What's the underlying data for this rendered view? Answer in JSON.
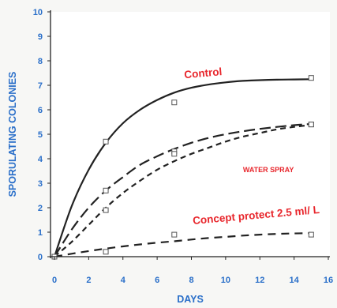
{
  "chart_data": {
    "type": "line",
    "xlabel": "DAYS",
    "ylabel": "SPORULATING COLONIES",
    "xlim": [
      0,
      16
    ],
    "ylim": [
      0,
      10
    ],
    "xticks": [
      0,
      2,
      4,
      6,
      8,
      10,
      12,
      14,
      16
    ],
    "yticks": [
      0,
      1,
      2,
      3,
      4,
      5,
      6,
      7,
      8,
      9,
      10
    ],
    "grid": false,
    "legend": "none",
    "colors": {
      "axis": "#2a6fc9",
      "annotation": "#e8262c",
      "lines": "#222222"
    },
    "series": [
      {
        "name": "Control",
        "style": "solid",
        "points": [
          [
            0,
            0
          ],
          [
            3,
            4.7
          ],
          [
            7,
            6.3
          ],
          [
            15,
            7.3
          ]
        ],
        "curve": [
          [
            0,
            0
          ],
          [
            1,
            2.05
          ],
          [
            2,
            3.55
          ],
          [
            3,
            4.65
          ],
          [
            4,
            5.45
          ],
          [
            5,
            6.0
          ],
          [
            6,
            6.4
          ],
          [
            7,
            6.7
          ],
          [
            8,
            6.9
          ],
          [
            9,
            7.03
          ],
          [
            10,
            7.12
          ],
          [
            11,
            7.18
          ],
          [
            12,
            7.21
          ],
          [
            13,
            7.23
          ],
          [
            14,
            7.24
          ],
          [
            15,
            7.25
          ]
        ]
      },
      {
        "name": "",
        "style": "long-dash",
        "points": [
          [
            0,
            0
          ],
          [
            3,
            2.7
          ],
          [
            7,
            4.3
          ],
          [
            15,
            5.4
          ]
        ],
        "curve": [
          [
            0,
            0
          ],
          [
            1,
            1.1
          ],
          [
            2,
            2.0
          ],
          [
            3,
            2.7
          ],
          [
            4,
            3.25
          ],
          [
            5,
            3.75
          ],
          [
            6,
            4.1
          ],
          [
            7,
            4.4
          ],
          [
            8,
            4.65
          ],
          [
            9,
            4.85
          ],
          [
            10,
            5.0
          ],
          [
            11,
            5.12
          ],
          [
            12,
            5.22
          ],
          [
            13,
            5.3
          ],
          [
            14,
            5.37
          ],
          [
            15,
            5.42
          ]
        ]
      },
      {
        "name": "WATER SPRAY",
        "style": "short-dash",
        "points": [
          [
            0,
            0
          ],
          [
            3,
            1.9
          ],
          [
            7,
            4.2
          ],
          [
            15,
            5.4
          ]
        ],
        "curve": [
          [
            0,
            0
          ],
          [
            1,
            0.6
          ],
          [
            2,
            1.3
          ],
          [
            3,
            2.0
          ],
          [
            4,
            2.6
          ],
          [
            5,
            3.1
          ],
          [
            6,
            3.55
          ],
          [
            7,
            3.9
          ],
          [
            8,
            4.2
          ],
          [
            9,
            4.45
          ],
          [
            10,
            4.7
          ],
          [
            11,
            4.9
          ],
          [
            12,
            5.05
          ],
          [
            13,
            5.2
          ],
          [
            14,
            5.3
          ],
          [
            15,
            5.38
          ]
        ]
      },
      {
        "name": "Concept protect 2.5 ml/ L",
        "style": "dash",
        "points": [
          [
            0,
            0
          ],
          [
            3,
            0.2
          ],
          [
            7,
            0.9
          ],
          [
            15,
            0.9
          ]
        ],
        "curve": [
          [
            0,
            0
          ],
          [
            1,
            0.12
          ],
          [
            2,
            0.23
          ],
          [
            3,
            0.33
          ],
          [
            4,
            0.42
          ],
          [
            5,
            0.5
          ],
          [
            6,
            0.57
          ],
          [
            7,
            0.63
          ],
          [
            8,
            0.7
          ],
          [
            9,
            0.76
          ],
          [
            10,
            0.81
          ],
          [
            11,
            0.86
          ],
          [
            12,
            0.9
          ],
          [
            13,
            0.93
          ],
          [
            14,
            0.95
          ],
          [
            15,
            0.96
          ]
        ]
      }
    ],
    "annotations": [
      {
        "text": "Control",
        "x": 8.7,
        "y": 7.35,
        "size": "large"
      },
      {
        "text": "WATER SPRAY",
        "x": 12.5,
        "y": 3.45,
        "size": "small"
      },
      {
        "text": "Concept protect 2.5 ml/ L",
        "x": 11.8,
        "y": 1.55,
        "size": "large"
      }
    ]
  }
}
